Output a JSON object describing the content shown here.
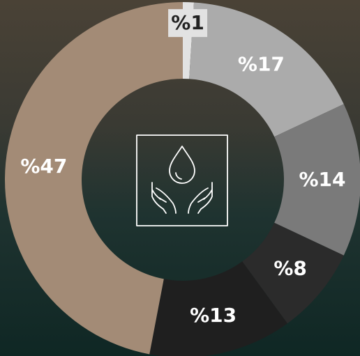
{
  "chart_data": {
    "type": "pie",
    "values": [
      1,
      17,
      14,
      8,
      13,
      47
    ],
    "value_labels": [
      "%1",
      "%17",
      "%14",
      "%8",
      "%13",
      "%47"
    ],
    "colors": [
      "#e2e2e2",
      "#ababab",
      "#7a7a7a",
      "#2b2b2b",
      "#1f1f1f",
      "#a38b76"
    ]
  }
}
